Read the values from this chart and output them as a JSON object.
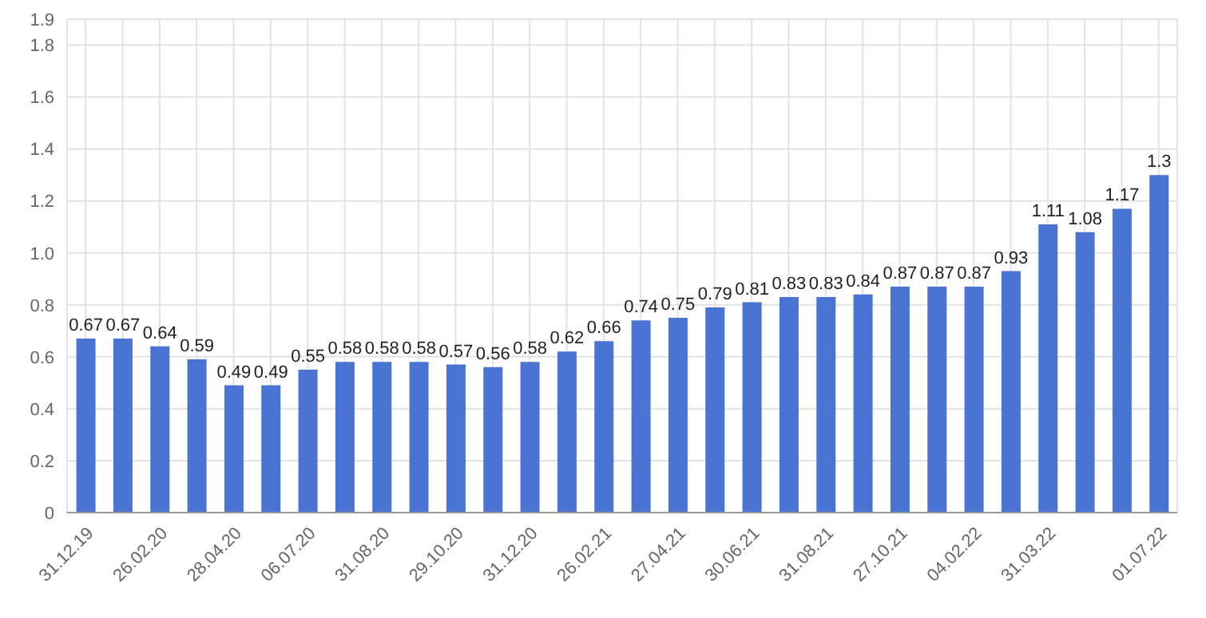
{
  "chart_data": {
    "type": "bar",
    "categories": [
      "31.12.19",
      null,
      "26.02.20",
      null,
      "28.04.20",
      null,
      "06.07.20",
      null,
      "31.08.20",
      null,
      "29.10.20",
      null,
      "31.12.20",
      null,
      "26.02.21",
      null,
      "27.04.21",
      null,
      "30.06.21",
      null,
      "31.08.21",
      null,
      "27.10.21",
      null,
      "04.02.22",
      null,
      "31.03.22",
      null,
      null,
      "01.07.22"
    ],
    "values": [
      0.67,
      0.67,
      0.64,
      0.59,
      0.49,
      0.49,
      0.55,
      0.58,
      0.58,
      0.58,
      0.57,
      0.56,
      0.58,
      0.62,
      0.66,
      0.74,
      0.75,
      0.79,
      0.81,
      0.83,
      0.83,
      0.84,
      0.87,
      0.87,
      0.87,
      0.93,
      1.11,
      1.08,
      1.17,
      1.3
    ],
    "color": "#4a74d3",
    "ylim": [
      0,
      1.9
    ],
    "yticks": [
      0,
      0.2,
      0.4,
      0.6,
      0.8,
      {
        "value": 1,
        "label": "1.0"
      },
      1.2,
      1.4,
      1.6,
      1.8,
      1.9
    ],
    "grid": true,
    "data_labels": true
  }
}
